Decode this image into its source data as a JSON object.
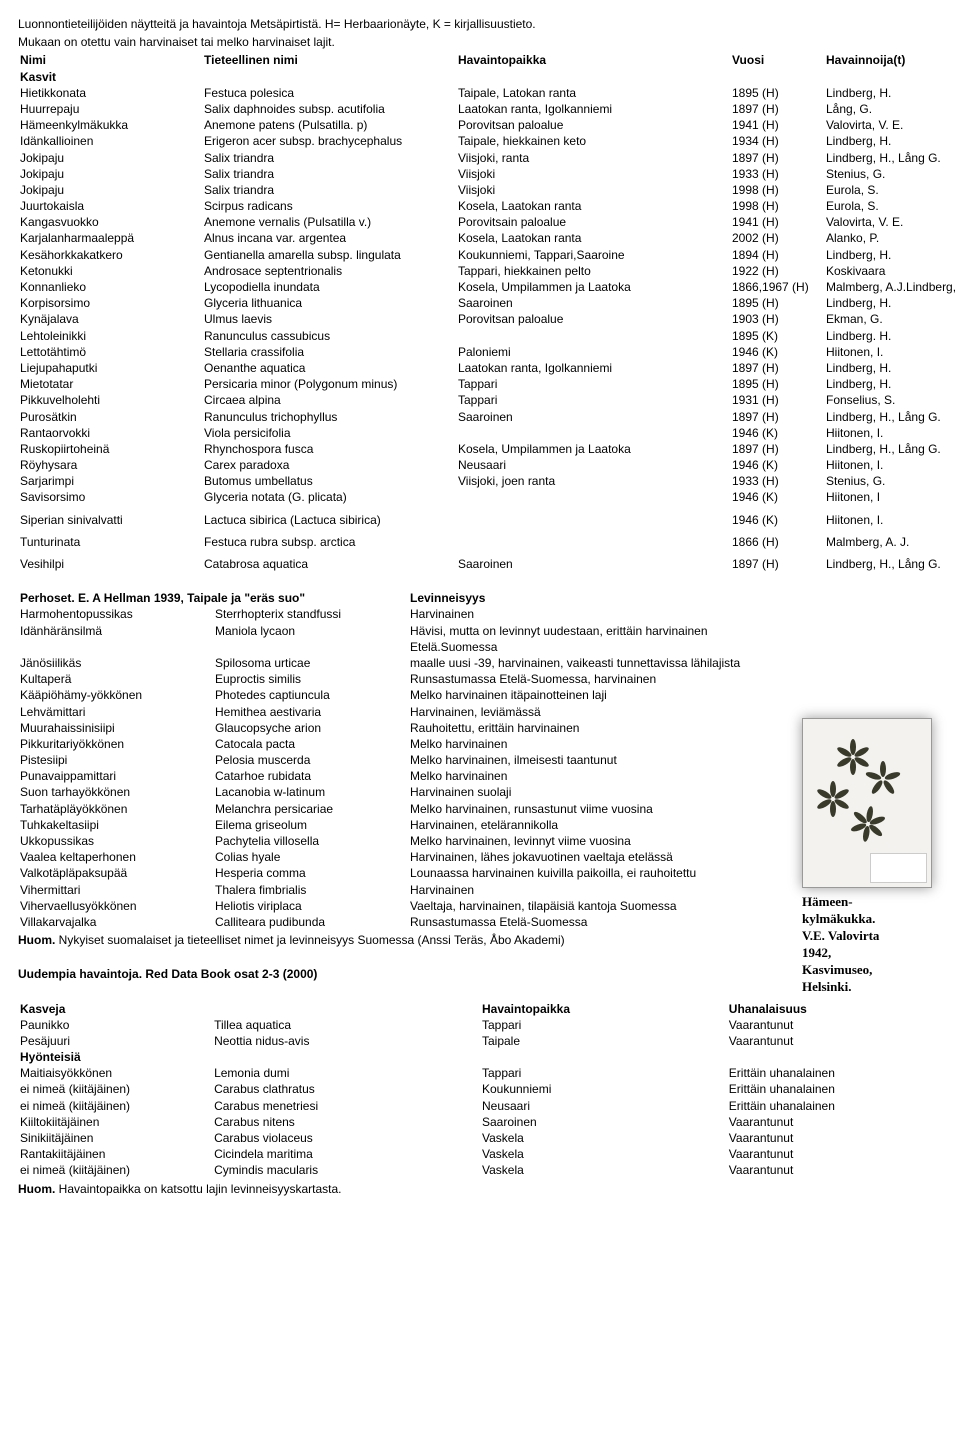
{
  "intro": {
    "line1": "Luonnontieteilijöiden näytteitä ja havaintoja Metsäpirtistä. H= Herbaarionäyte, K = kirjallisuustieto.",
    "line2": "Mukaan on otettu vain harvinaiset tai melko harvinaiset lajit."
  },
  "plants": {
    "headers": {
      "c1": "Nimi",
      "c2": "Tieteellinen nimi",
      "c3": "Havaintopaikka",
      "c4": "Vuosi",
      "c5": "Havainnoija(t)"
    },
    "section_label": "Kasvit",
    "rows": [
      [
        "Hietikkonata",
        "Festuca polesica",
        "Taipale, Latokan ranta",
        "1895 (H)",
        "Lindberg, H."
      ],
      [
        "Huurrepaju",
        "Salix daphnoides subsp. acutifolia",
        "Laatokan ranta, Igolkanniemi",
        "1897 (H)",
        "Lång, G."
      ],
      [
        "Hämeenkylmäkukka",
        "Anemone patens (Pulsatilla. p)",
        "Porovitsan paloalue",
        "1941 (H)",
        "Valovirta, V. E."
      ],
      [
        "Idänkallioinen",
        "Erigeron acer subsp. brachycephalus",
        "Taipale, hiekkainen keto",
        "1934 (H)",
        "Lindberg, H."
      ],
      [
        "Jokipaju",
        "Salix triandra",
        "Viisjoki, ranta",
        "1897 (H)",
        "Lindberg, H., Lång G."
      ],
      [
        "Jokipaju",
        "Salix triandra",
        "Viisjoki",
        "1933 (H)",
        "Stenius, G."
      ],
      [
        "Jokipaju",
        "Salix triandra",
        "Viisjoki",
        "1998 (H)",
        "Eurola, S."
      ],
      [
        "Juurtokaisla",
        "Scirpus radicans",
        "Kosela, Laatokan ranta",
        "1998 (H)",
        "Eurola, S."
      ],
      [
        "Kangasvuokko",
        "Anemone vernalis (Pulsatilla v.)",
        "Porovitsain paloalue",
        "1941 (H)",
        "Valovirta, V. E."
      ],
      [
        "Karjalanharmaaleppä",
        "Alnus incana var. argentea",
        "Kosela, Laatokan ranta",
        "2002 (H)",
        "Alanko, P."
      ],
      [
        "Kesähorkkakatkero",
        "Gentianella amarella subsp. lingulata",
        "Koukunniemi, Tappari,Saaroine",
        "1894 (H)",
        "Lindberg, H."
      ],
      [
        "Ketonukki",
        "Androsace septentrionalis",
        "Tappari, hiekkainen pelto",
        "1922 (H)",
        "Koskivaara"
      ],
      [
        "Konnanlieko",
        "Lycopodiella inundata",
        "Kosela, Umpilammen ja Laatoka",
        "1866,1967 (H)",
        "Malmberg, A.J.Lindberg, H"
      ],
      [
        "Korpisorsimo",
        "Glyceria lithuanica",
        "Saaroinen",
        "1895 (H)",
        "Lindberg, H."
      ],
      [
        "Kynäjalava",
        "Ulmus laevis",
        "Porovitsan paloalue",
        "1903 (H)",
        "Ekman, G."
      ],
      [
        "Lehtoleinikki",
        "Ranunculus cassubicus",
        "",
        "1895 (K)",
        "Lindberg. H."
      ],
      [
        "Lettotähtimö",
        "Stellaria crassifolia",
        "Paloniemi",
        "1946 (K)",
        "Hiitonen, I."
      ],
      [
        "Liejupahaputki",
        "Oenanthe aquatica",
        "Laatokan ranta, Igolkanniemi",
        "1897 (H)",
        "Lindberg, H."
      ],
      [
        "Mietotatar",
        "Persicaria minor (Polygonum minus)",
        "Tappari",
        "1895 (H)",
        "Lindberg, H."
      ],
      [
        "Pikkuvelholehti",
        "Circaea alpina",
        "Tappari",
        "1931 (H)",
        "Fonselius, S."
      ],
      [
        "Purosätkin",
        "Ranunculus trichophyllus",
        "Saaroinen",
        "1897 (H)",
        "Lindberg, H., Lång G."
      ],
      [
        "Rantaorvokki",
        "Viola persicifolia",
        "",
        "1946 (K)",
        "Hiitonen, I."
      ],
      [
        "Ruskopiirtoheinä",
        "Rhynchospora fusca",
        "Kosela, Umpilammen ja Laatoka",
        "1897 (H)",
        "Lindberg, H., Lång G."
      ],
      [
        "Röyhysara",
        "Carex paradoxa",
        "Neusaari",
        "1946 (K)",
        "Hiitonen, I."
      ],
      [
        "Sarjarimpi",
        "Butomus umbellatus",
        "Viisjoki, joen ranta",
        "1933 (H)",
        "Stenius, G."
      ],
      [
        "Savisorsimo",
        "Glyceria notata (G. plicata)",
        "",
        "1946 (K)",
        "Hiitonen, I"
      ]
    ],
    "gap_rows": [
      [
        "Siperian sinivalvatti",
        "Lactuca sibirica (Lactuca sibirica)",
        "",
        "1946 (K)",
        "Hiitonen, I."
      ],
      [
        "Tunturinata",
        "Festuca rubra subsp. arctica",
        "",
        "1866 (H)",
        "Malmberg, A. J."
      ],
      [
        "Vesihilpi",
        "Catabrosa aquatica",
        "Saaroinen",
        "1897 (H)",
        "Lindberg, H., Lång G."
      ]
    ]
  },
  "butterflies": {
    "header_left": "Perhoset.   E. A Hellman 1939, Taipale ja \"eräs suo\"",
    "header_right": "Levinneisyys",
    "rows": [
      [
        "Harmohentopussikas",
        "Sterrhopterix standfussi",
        "Harvinainen"
      ],
      [
        "Idänhäränsilmä",
        "Maniola lycaon",
        "Hävisi, mutta on levinnyt uudestaan, erittäin harvinainen Etelä.Suomessa"
      ],
      [
        "Jänösiilikäs",
        "Spilosoma urticae",
        "maalle uusi -39, harvinainen, vaikeasti tunnettavissa lähilajista"
      ],
      [
        "Kultaperä",
        "Euproctis similis",
        "Runsastumassa Etelä-Suomessa, harvinainen"
      ],
      [
        "Kääpiöhämy-yökkönen",
        "Photedes captiuncula",
        "Melko harvinainen itäpainotteinen laji"
      ],
      [
        "Lehvämittari",
        "Hemithea aestivaria",
        "Harvinainen, leviämässä"
      ],
      [
        "Muurahaissinisiipi",
        "Glaucopsyche arion",
        "Rauhoitettu, erittäin harvinainen"
      ],
      [
        "Pikkuritariyökkönen",
        "Catocala pacta",
        "Melko harvinainen"
      ],
      [
        "Pistesiipi",
        "Pelosia muscerda",
        "Melko harvinainen, ilmeisesti taantunut"
      ],
      [
        "Punavaippamittari",
        "Catarhoe rubidata",
        "Melko harvinainen"
      ],
      [
        "Suon tarhayökkönen",
        "Lacanobia w-latinum",
        "Harvinainen suolaji"
      ],
      [
        "Tarhatäpläyökkönen",
        "Melanchra persicariae",
        "Melko harvinainen, runsastunut viime vuosina"
      ],
      [
        "Tuhkakeltasiipi",
        "Eilema griseolum",
        "Harvinainen, etelärannikolla"
      ],
      [
        "Ukkopussikas",
        "Pachytelia villosella",
        "Melko harvinainen, levinnyt viime vuosina"
      ],
      [
        "Vaalea keltaperhonen",
        "Colias hyale",
        "Harvinainen, lähes jokavuotinen vaeltaja etelässä"
      ],
      [
        "Valkotäpläpaksupää",
        "Hesperia comma",
        "Lounaassa harvinainen kuivilla paikoilla, ei rauhoitettu"
      ],
      [
        "Vihermittari",
        "Thalera fimbrialis",
        "Harvinainen"
      ],
      [
        "Vihervaellusyökkönen",
        "Heliotis viriplaca",
        "Vaeltaja, harvinainen, tilapäisiä kantoja Suomessa"
      ],
      [
        "Villakarvajalka",
        "Calliteara pudibunda",
        "Runsastumassa Etelä-Suomessa"
      ]
    ],
    "note_bold": "Huom.",
    "note_text": " Nykyiset suomalaiset ja tieteelliset nimet ja levinneisyys Suomessa  (Anssi Teräs, Åbo Akademi)"
  },
  "caption": {
    "l1": "Hämeen-",
    "l2": "kylmäkukka.",
    "l3": "V.E. Valovirta",
    "l4": "1942,",
    "l5": "Kasvimuseo,",
    "l6": "Helsinki."
  },
  "reddata": {
    "title": "Uudempia havaintoja. Red Data Book osat 2-3 (2000)",
    "headers": {
      "c1": "Kasveja",
      "c3": "Havaintopaikka",
      "c4": "Uhanalaisuus"
    },
    "plants": [
      [
        "Paunikko",
        "Tillea aquatica",
        "Tappari",
        "Vaarantunut"
      ],
      [
        "Pesäjuuri",
        "Neottia nidus-avis",
        "Taipale",
        "Vaarantunut"
      ]
    ],
    "insects_label": "Hyönteisiä",
    "insects": [
      [
        "Maitiaisyökkönen",
        "Lemonia dumi",
        "Tappari",
        "Erittäin uhanalainen"
      ],
      [
        "ei nimeä (kiitäjäinen)",
        "Carabus clathratus",
        "Koukunniemi",
        "Erittäin uhanalainen"
      ],
      [
        "ei nimeä (kiitäjäinen)",
        "Carabus menetriesi",
        "Neusaari",
        "Erittäin uhanalainen"
      ],
      [
        "Kiiltokiitäjäinen",
        "Carabus nitens",
        "Saaroinen",
        "Vaarantunut"
      ],
      [
        "Sinikiitäjäinen",
        "Carabus violaceus",
        "Vaskela",
        "Vaarantunut"
      ],
      [
        "Rantakiitäjäinen",
        "Cicindela maritima",
        "Vaskela",
        "Vaarantunut"
      ],
      [
        "ei nimeä (kiitäjäinen)",
        "Cymindis macularis",
        "Vaskela",
        "Vaarantunut"
      ]
    ],
    "note_bold": "Huom.",
    "note_text": " Havaintopaikka on katsottu lajin levinneisyyskartasta."
  }
}
